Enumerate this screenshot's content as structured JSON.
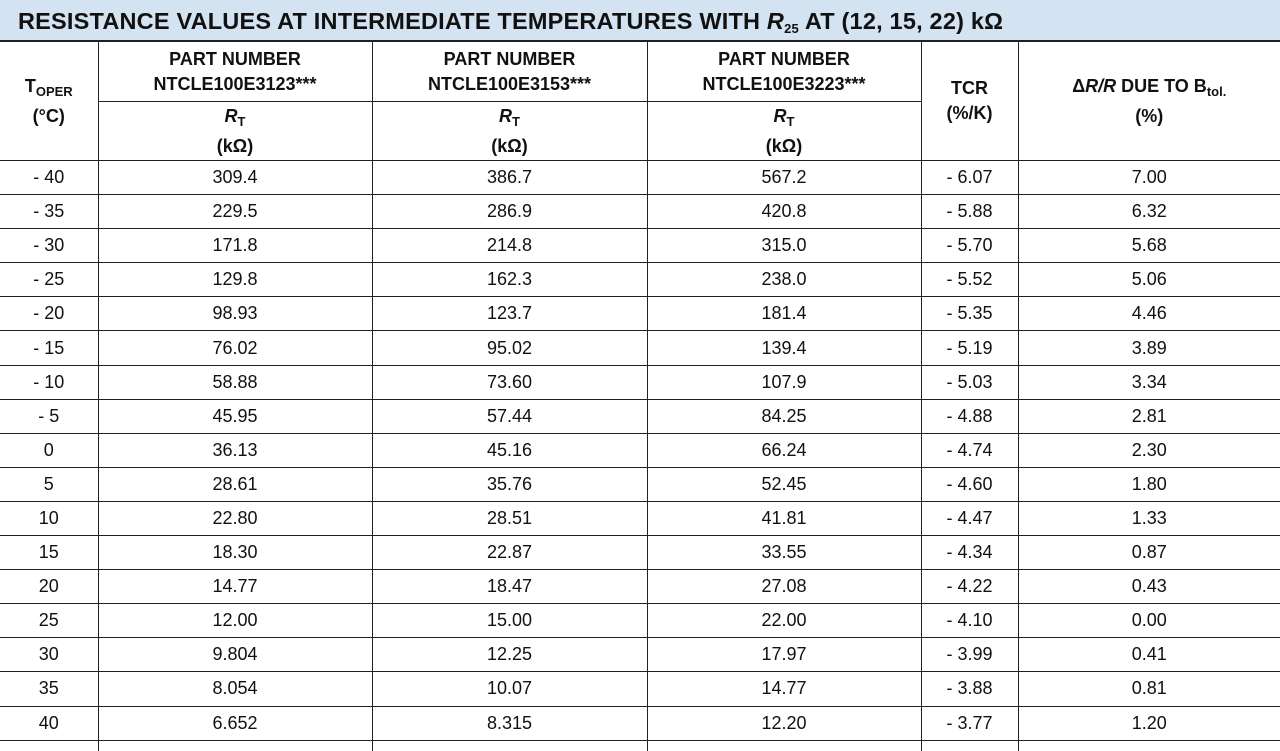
{
  "title": {
    "before": "RESISTANCE VALUES AT INTERMEDIATE TEMPERATURES WITH ",
    "symbol": "R",
    "subscript": "25",
    "after": " AT (12, 15, 22) kΩ"
  },
  "headers": {
    "temperature": {
      "symbol": "T",
      "subscript": "OPER",
      "unit": "(°C)"
    },
    "parts": [
      {
        "label": "PART NUMBER",
        "number": "NTCLE100E3123***",
        "symbol": "R",
        "subscript": "T",
        "unit": "(kΩ)"
      },
      {
        "label": "PART NUMBER",
        "number": "NTCLE100E3153***",
        "symbol": "R",
        "subscript": "T",
        "unit": "(kΩ)"
      },
      {
        "label": "PART NUMBER",
        "number": "NTCLE100E3223***",
        "symbol": "R",
        "subscript": "T",
        "unit": "(kΩ)"
      }
    ],
    "tcr": {
      "label": "TCR",
      "unit": "(%/K)"
    },
    "tolerance": {
      "delta": "Δ",
      "ratio": "R/R",
      "label": " DUE TO B",
      "subscript": "tol.",
      "unit": "(%)"
    }
  },
  "rows": [
    [
      "- 40",
      "309.4",
      "386.7",
      "567.2",
      "- 6.07",
      "7.00"
    ],
    [
      "- 35",
      "229.5",
      "286.9",
      "420.8",
      "- 5.88",
      "6.32"
    ],
    [
      "- 30",
      "171.8",
      "214.8",
      "315.0",
      "- 5.70",
      "5.68"
    ],
    [
      "- 25",
      "129.8",
      "162.3",
      "238.0",
      "- 5.52",
      "5.06"
    ],
    [
      "- 20",
      "98.93",
      "123.7",
      "181.4",
      "- 5.35",
      "4.46"
    ],
    [
      "- 15",
      "76.02",
      "95.02",
      "139.4",
      "- 5.19",
      "3.89"
    ],
    [
      "- 10",
      "58.88",
      "73.60",
      "107.9",
      "- 5.03",
      "3.34"
    ],
    [
      "- 5",
      "45.95",
      "57.44",
      "84.25",
      "- 4.88",
      "2.81"
    ],
    [
      "0",
      "36.13",
      "45.16",
      "66.24",
      "- 4.74",
      "2.30"
    ],
    [
      "5",
      "28.61",
      "35.76",
      "52.45",
      "- 4.60",
      "1.80"
    ],
    [
      "10",
      "22.80",
      "28.51",
      "41.81",
      "- 4.47",
      "1.33"
    ],
    [
      "15",
      "18.30",
      "22.87",
      "33.55",
      "- 4.34",
      "0.87"
    ],
    [
      "20",
      "14.77",
      "18.47",
      "27.08",
      "- 4.22",
      "0.43"
    ],
    [
      "25",
      "12.00",
      "15.00",
      "22.00",
      "- 4.10",
      "0.00"
    ],
    [
      "30",
      "9.804",
      "12.25",
      "17.97",
      "- 3.99",
      "0.41"
    ],
    [
      "35",
      "8.054",
      "10.07",
      "14.77",
      "- 3.88",
      "0.81"
    ],
    [
      "40",
      "6.652",
      "8.315",
      "12.20",
      "- 3.77",
      "1.20"
    ]
  ]
}
